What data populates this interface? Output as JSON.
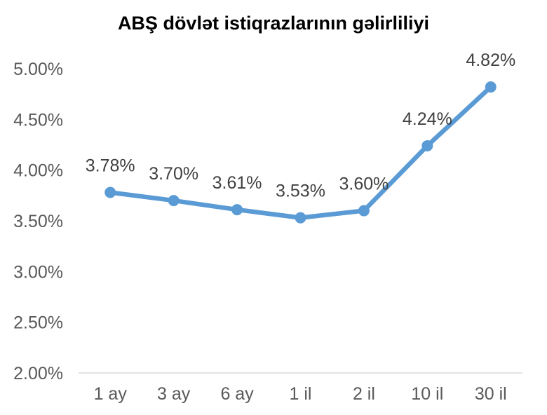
{
  "chart_data": {
    "type": "line",
    "title": "ABŞ dövlət istiqrazlarının gəlirliliyi",
    "categories": [
      "1 ay",
      "3 ay",
      "6 ay",
      "1 il",
      "2 il",
      "10 il",
      "30 il"
    ],
    "series": [
      {
        "values": [
          3.78,
          3.7,
          3.61,
          3.53,
          3.6,
          4.24,
          4.82
        ],
        "data_labels": [
          "3.78%",
          "3.70%",
          "3.61%",
          "3.53%",
          "3.60%",
          "4.24%",
          "4.82%"
        ]
      }
    ],
    "ylim": [
      2.0,
      5.0
    ],
    "yticks": [
      "2.00%",
      "2.50%",
      "3.00%",
      "3.50%",
      "4.00%",
      "4.50%",
      "5.00%"
    ],
    "ytick_values": [
      2.0,
      2.5,
      3.0,
      3.5,
      4.0,
      4.5,
      5.0
    ],
    "grid": false,
    "legend": "none",
    "colors": {
      "line": "#5B9BD5",
      "axis": "#D9D9D9",
      "tick_text": "#595959",
      "label_text": "#404040"
    }
  }
}
